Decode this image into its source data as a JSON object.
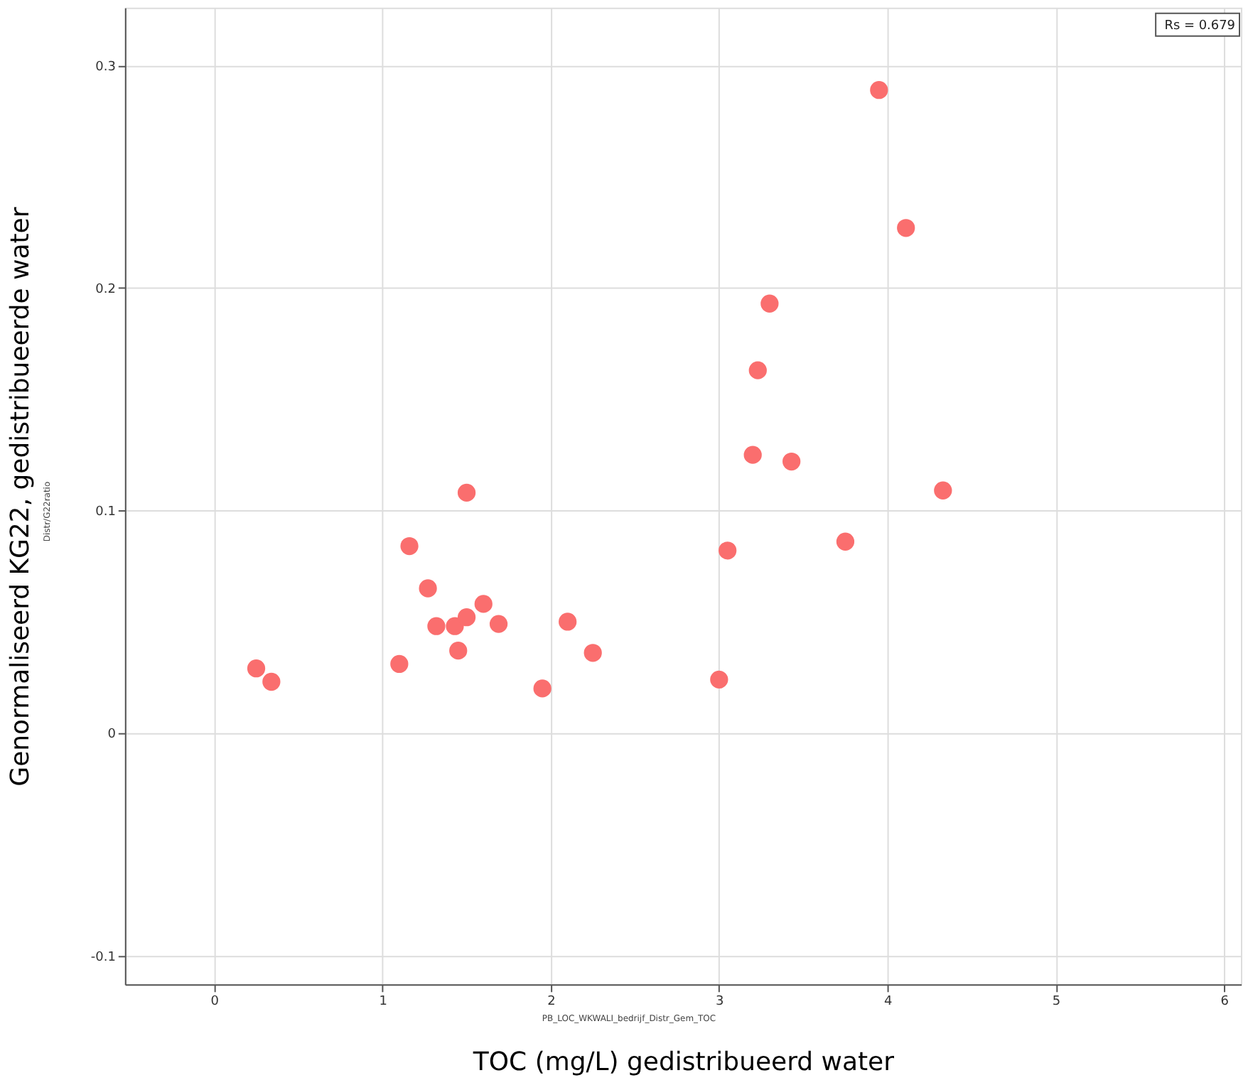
{
  "chart_data": {
    "type": "scatter",
    "xlabel": "TOC (mg/L) gedistribueerd water",
    "ylabel": "Genormaliseerd KG22, gedistribueerde water",
    "annotations": [
      "Rs = 0.679",
      "Distr/G22ratio",
      "PB_LOC_WKWALI_bedrijf_Distr_Gem_TOC"
    ],
    "x": [
      0.25,
      0.34,
      1.1,
      1.16,
      1.27,
      1.32,
      1.43,
      1.45,
      1.5,
      1.5,
      1.6,
      1.69,
      1.95,
      2.1,
      2.25,
      3.0,
      3.05,
      3.2,
      3.23,
      3.3,
      3.43,
      3.75,
      3.95,
      4.11,
      4.33
    ],
    "values": [
      0.029,
      0.023,
      0.031,
      0.084,
      0.065,
      0.048,
      0.048,
      0.037,
      0.108,
      0.052,
      0.058,
      0.049,
      0.02,
      0.05,
      0.036,
      0.024,
      0.082,
      0.125,
      0.163,
      0.193,
      0.122,
      0.086,
      0.289,
      0.227,
      0.109
    ],
    "color": "#fa6e6e",
    "marker": "circle",
    "xlim": [
      -0.53,
      6.1
    ],
    "xticks": [
      0,
      1,
      2,
      3,
      4,
      5,
      6
    ],
    "ylim": [
      -0.113,
      0.326
    ],
    "yticks": [
      -0.1,
      0,
      0.1,
      0.2,
      0.3
    ],
    "grid": true
  }
}
